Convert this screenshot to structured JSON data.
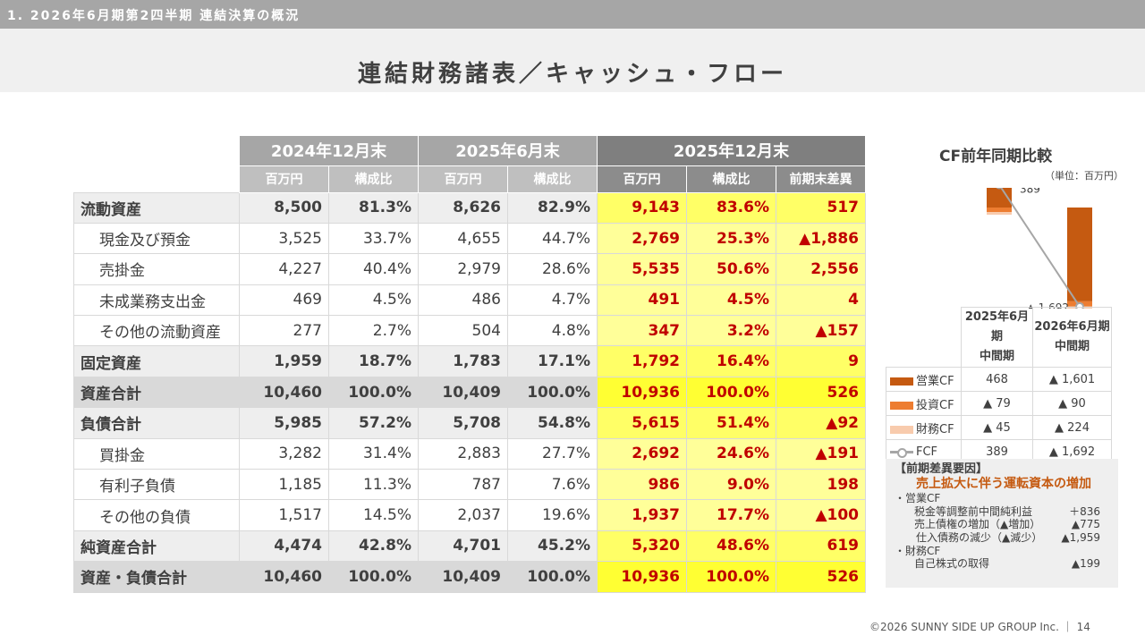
{
  "header": {
    "section": "1. 2026年6月期第2四半期 連結決算の概況",
    "title": "連結財務諸表／キャッシュ・フロー"
  },
  "bs": {
    "periods": [
      "2024年12月末",
      "2025年6月末",
      "2025年12月末"
    ],
    "cols": {
      "amount": "百万円",
      "ratio": "構成比",
      "diff": "前期末差異"
    },
    "rows": [
      {
        "label": "流動資産",
        "c": [
          "8,500",
          "81.3%",
          "8,626",
          "82.9%",
          "9,143",
          "83.6%",
          "517"
        ]
      },
      {
        "label": "現金及び預金",
        "c": [
          "3,525",
          "33.7%",
          "4,655",
          "44.7%",
          "2,769",
          "25.3%",
          "▲1,886"
        ]
      },
      {
        "label": "売掛金",
        "c": [
          "4,227",
          "40.4%",
          "2,979",
          "28.6%",
          "5,535",
          "50.6%",
          "2,556"
        ]
      },
      {
        "label": "未成業務支出金",
        "c": [
          "469",
          "4.5%",
          "486",
          "4.7%",
          "491",
          "4.5%",
          "4"
        ]
      },
      {
        "label": "その他の流動資産",
        "c": [
          "277",
          "2.7%",
          "504",
          "4.8%",
          "347",
          "3.2%",
          "▲157"
        ]
      },
      {
        "label": "固定資産",
        "c": [
          "1,959",
          "18.7%",
          "1,783",
          "17.1%",
          "1,792",
          "16.4%",
          "9"
        ]
      },
      {
        "label": "資産合計",
        "c": [
          "10,460",
          "100.0%",
          "10,409",
          "100.0%",
          "10,936",
          "100.0%",
          "526"
        ]
      },
      {
        "label": "負債合計",
        "c": [
          "5,985",
          "57.2%",
          "5,708",
          "54.8%",
          "5,615",
          "51.4%",
          "▲92"
        ]
      },
      {
        "label": "買掛金",
        "c": [
          "3,282",
          "31.4%",
          "2,883",
          "27.7%",
          "2,692",
          "24.6%",
          "▲191"
        ]
      },
      {
        "label": "有利子負債",
        "c": [
          "1,185",
          "11.3%",
          "787",
          "7.6%",
          "986",
          "9.0%",
          "198"
        ]
      },
      {
        "label": "その他の負債",
        "c": [
          "1,517",
          "14.5%",
          "2,037",
          "19.6%",
          "1,937",
          "17.7%",
          "▲100"
        ]
      },
      {
        "label": "純資産合計",
        "c": [
          "4,474",
          "42.8%",
          "4,701",
          "45.2%",
          "5,320",
          "48.6%",
          "619"
        ]
      },
      {
        "label": "資産・負債合計",
        "c": [
          "10,460",
          "100.0%",
          "10,409",
          "100.0%",
          "10,936",
          "100.0%",
          "526"
        ]
      }
    ]
  },
  "cf": {
    "title": "CF前年同期比較",
    "unit": "（単位：百万円）",
    "col1": "2025年6月期",
    "col2": "2026年6月期",
    "colsub": "中間期",
    "rows": [
      {
        "label": "営業CF",
        "v1": "468",
        "v2": "▲ 1,601"
      },
      {
        "label": "投資CF",
        "v1": "▲ 79",
        "v2": "▲ 90"
      },
      {
        "label": "財務CF",
        "v1": "▲ 45",
        "v2": "▲ 224"
      },
      {
        "label": "FCF",
        "v1": "389",
        "v2": "▲ 1,692"
      }
    ],
    "fcf_label_1": "389",
    "fcf_label_2": "▲ 1,692"
  },
  "chart_data": {
    "type": "bar",
    "title": "CF前年同期比較",
    "ylabel": "百万円",
    "categories": [
      "2025年6月期 中間期",
      "2026年6月期 中間期"
    ],
    "series": [
      {
        "name": "営業CF",
        "values": [
          468,
          -1601
        ]
      },
      {
        "name": "投資CF",
        "values": [
          -79,
          -90
        ]
      },
      {
        "name": "財務CF",
        "values": [
          -45,
          -224
        ]
      },
      {
        "name": "FCF",
        "type": "line",
        "values": [
          389,
          -1692
        ]
      }
    ]
  },
  "colors": {
    "op": "#c55a11",
    "inv": "#ed7d31",
    "fin": "#f8cbad",
    "fcf": "#a6a6a6"
  },
  "factors": {
    "heading": "【前期差異要因】",
    "emphasis": "売上拡大に伴う運転資本の増加",
    "sec1": "・営業CF",
    "items1": [
      {
        "label": "税金等調整前中間純利益",
        "value": "＋836"
      },
      {
        "label": "売上債権の増加（▲増加）",
        "value": "▲775"
      },
      {
        "label": "仕入債務の減少（▲減少）",
        "value": "▲1,959"
      }
    ],
    "sec2": "・財務CF",
    "items2": [
      {
        "label": "自己株式の取得",
        "value": "▲199"
      }
    ]
  },
  "footer": "©2026 SUNNY SIDE UP GROUP Inc. ｜ 14"
}
